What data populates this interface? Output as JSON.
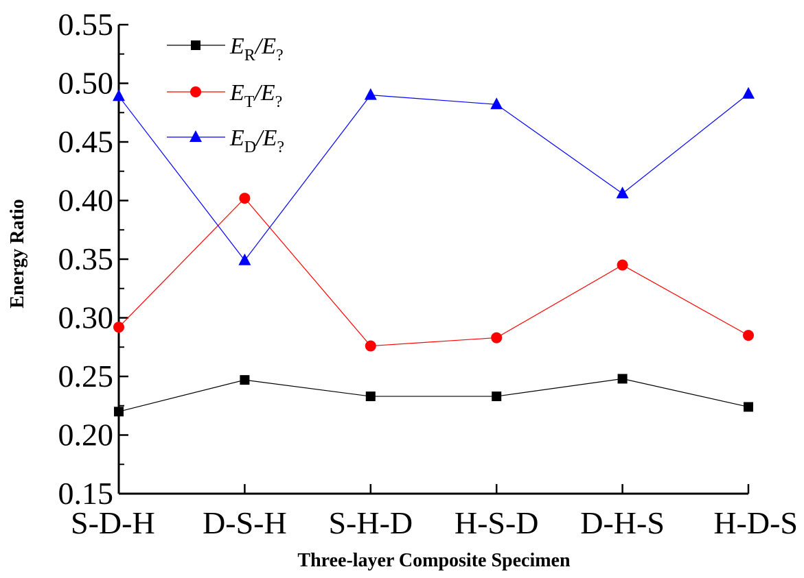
{
  "chart_data": {
    "type": "line",
    "title": "",
    "xlabel": "Three-layer Composite Specimen",
    "ylabel": "Energy Ratio",
    "categories": [
      "S-D-H",
      "D-S-H",
      "S-H-D",
      "H-S-D",
      "D-H-S",
      "H-D-S"
    ],
    "ylim": [
      0.15,
      0.55
    ],
    "yticks": [
      "0.15",
      "0.20",
      "0.25",
      "0.30",
      "0.35",
      "0.40",
      "0.45",
      "0.50",
      "0.55"
    ],
    "grid": false,
    "legend_position": "top-left",
    "series": [
      {
        "name": "E_R/E_?",
        "main": "E",
        "sub": "R",
        "tail": "/E",
        "tail_sub": "?",
        "color": "#000000",
        "marker": "square",
        "values": [
          0.22,
          0.247,
          0.233,
          0.233,
          0.248,
          0.224
        ]
      },
      {
        "name": "E_T/E_?",
        "main": "E",
        "sub": "T",
        "tail": "/E",
        "tail_sub": "?",
        "color": "#ff0000",
        "marker": "circle",
        "values": [
          0.292,
          0.402,
          0.276,
          0.283,
          0.345,
          0.285
        ]
      },
      {
        "name": "E_D/E_?",
        "main": "E",
        "sub": "D",
        "tail": "/E",
        "tail_sub": "?",
        "color": "#0000ff",
        "marker": "triangle",
        "values": [
          0.489,
          0.349,
          0.49,
          0.482,
          0.406,
          0.491
        ]
      }
    ]
  }
}
